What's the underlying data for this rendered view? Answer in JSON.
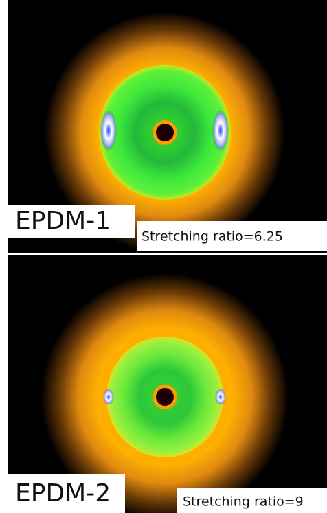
{
  "panels": [
    {
      "label": "EPDM-1",
      "caption": "Stretching ratio=6.25"
    },
    {
      "label": "EPDM-2",
      "caption": "Stretching ratio=9"
    }
  ]
}
